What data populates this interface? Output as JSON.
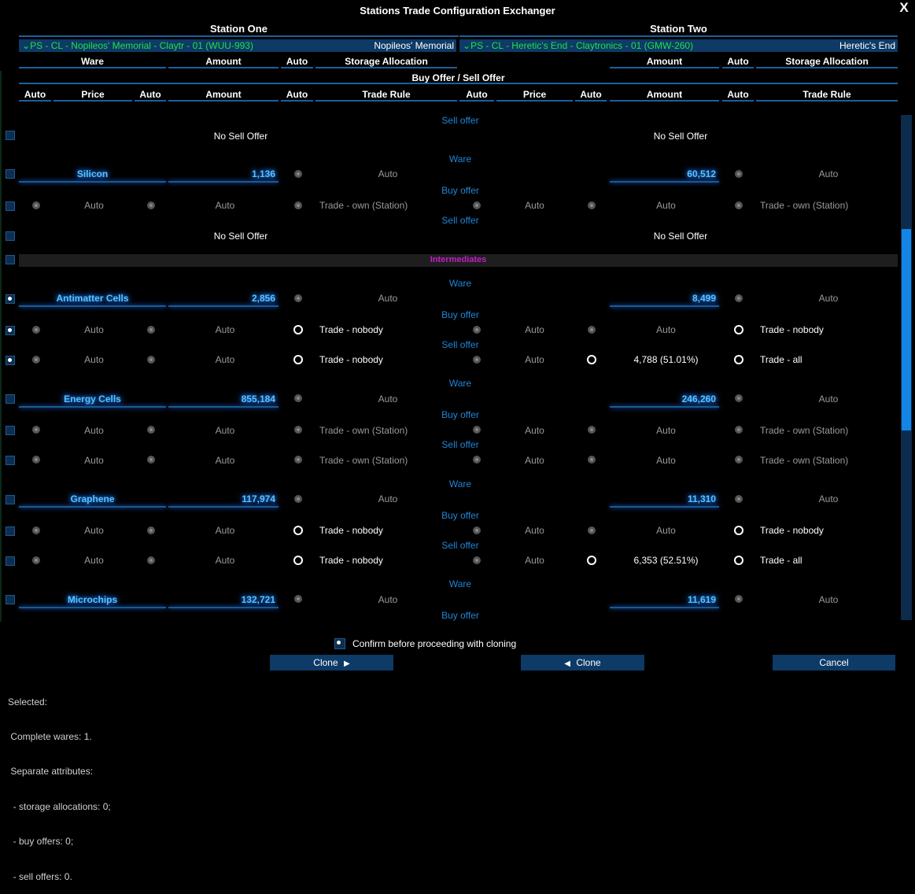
{
  "window": {
    "title": "Stations Trade Configuration Exchanger",
    "close_label": "X"
  },
  "station_one": {
    "title": "Station One",
    "dropdown_label": "PS - CL - Nopileos' Memorial - Claytr - 01 (WUU-993)",
    "dropdown_right": "Nopileos' Memorial"
  },
  "station_two": {
    "title": "Station Two",
    "dropdown_label": "PS - CL - Heretic's End - Claytronics - 01 (GMW-260)",
    "dropdown_right": "Heretic's End"
  },
  "headers": {
    "ware": "Ware",
    "amount": "Amount",
    "auto": "Auto",
    "storage": "Storage Allocation",
    "buy_sell": "Buy Offer / Sell Offer",
    "price": "Price",
    "trade_rule": "Trade Rule"
  },
  "labels": {
    "sell_offer": "Sell offer",
    "buy_offer": "Buy offer",
    "ware": "Ware",
    "no_sell": "No Sell Offer",
    "auto": "Auto",
    "trade_own": "Trade - own (Station)",
    "trade_nobody": "Trade - nobody",
    "trade_all": "Trade - all"
  },
  "group": {
    "intermediates": "Intermediates"
  },
  "wares": {
    "silicon": {
      "name": "Silicon",
      "s1": "1,136",
      "s2": "60,512"
    },
    "antimatter": {
      "name": "Antimatter Cells",
      "s1": "2,856",
      "s2": "8,499",
      "sell_s2": "4,788 (51.01%)"
    },
    "energy": {
      "name": "Energy Cells",
      "s1": "855,184",
      "s2": "246,260"
    },
    "graphene": {
      "name": "Graphene",
      "s1": "117,974",
      "s2": "11,310",
      "sell_s2": "6,353 (52.51%)"
    },
    "microchips": {
      "name": "Microchips",
      "s1": "132,721",
      "s2": "11,619"
    }
  },
  "confirm": {
    "label": "Confirm before proceeding with cloning",
    "checked": true
  },
  "buttons": {
    "clone_right": "Clone",
    "clone_left": "Clone",
    "cancel": "Cancel"
  },
  "status": {
    "line1": "Selected:",
    "line2": " Complete wares: 1.",
    "line3": " Separate attributes:",
    "line4": "  - storage allocations: 0;",
    "line5": "  - buy offers: 0;",
    "line6": "  - sell offers: 0."
  },
  "colors": {
    "accent": "#1f86d8",
    "group_label": "#c020c8",
    "dropdown_text": "#22e045",
    "button_bg": "#0d3a66"
  }
}
